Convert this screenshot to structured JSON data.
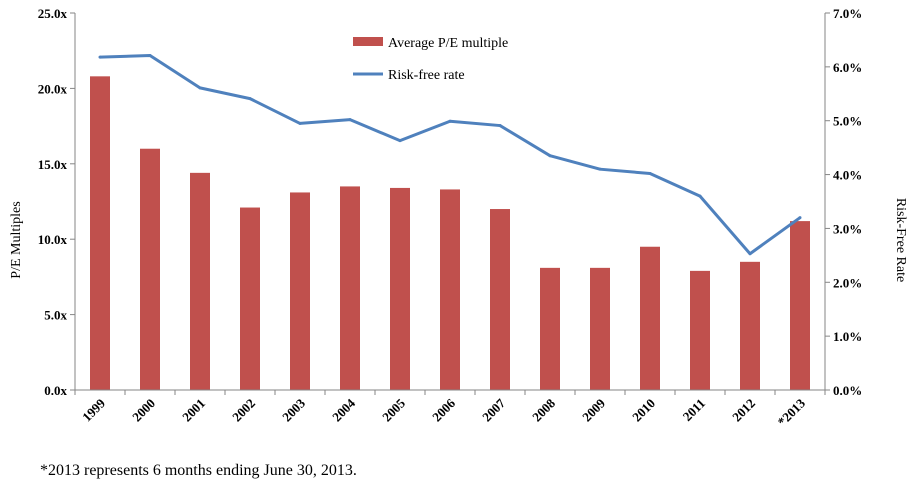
{
  "chart_data": {
    "type": "bar",
    "categories": [
      "1999",
      "2000",
      "2001",
      "2002",
      "2003",
      "2004",
      "2005",
      "2006",
      "2007",
      "2008",
      "2009",
      "2010",
      "2011",
      "2012",
      "*2013"
    ],
    "series": [
      {
        "name": "Average P/E multiple",
        "kind": "bar",
        "axis": "left",
        "color": "#c0504d",
        "values": [
          20.8,
          16.0,
          14.4,
          12.1,
          13.1,
          13.5,
          13.4,
          13.3,
          12.0,
          8.1,
          8.1,
          9.5,
          7.9,
          8.5,
          11.2
        ]
      },
      {
        "name": "Risk-free rate",
        "kind": "line",
        "axis": "right",
        "color": "#4f81bd",
        "values": [
          6.18,
          6.21,
          5.61,
          5.41,
          4.95,
          5.02,
          4.63,
          4.99,
          4.91,
          4.35,
          4.1,
          4.02,
          3.6,
          2.53,
          3.2
        ]
      }
    ],
    "y_left": {
      "label": "P/E  Multiples",
      "ylim": [
        0,
        25
      ],
      "ticks": [
        "0.0x",
        "5.0x",
        "10.0x",
        "15.0x",
        "20.0x",
        "25.0x"
      ]
    },
    "y_right": {
      "label": "Risk-Free Rate",
      "ylim": [
        0,
        7
      ],
      "ticks": [
        "0.0%",
        "1.0%",
        "2.0%",
        "3.0%",
        "4.0%",
        "5.0%",
        "6.0%",
        "7.0%"
      ]
    },
    "grid": false,
    "legend": "top-center"
  },
  "footnote": "*2013 represents 6 months ending June 30, 2013."
}
